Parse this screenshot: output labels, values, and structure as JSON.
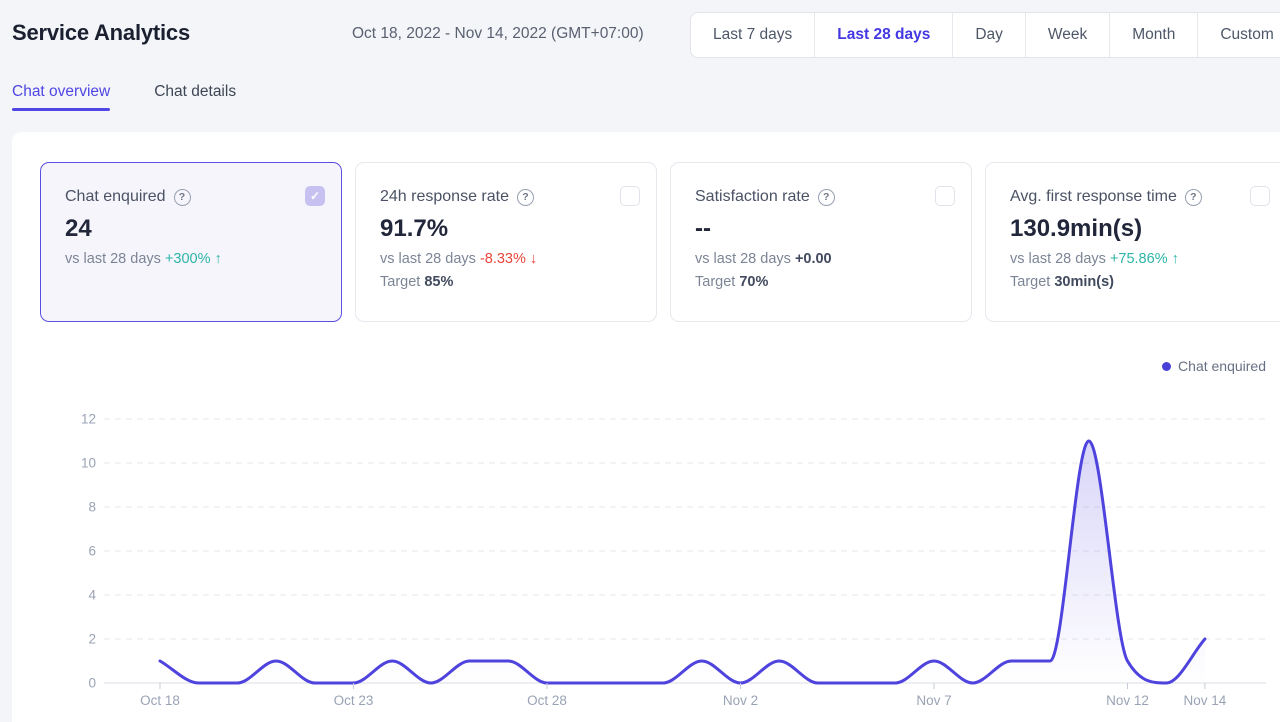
{
  "header": {
    "title": "Service Analytics",
    "date_range": "Oct 18, 2022 - Nov 14, 2022 (GMT+07:00)",
    "range_options": [
      {
        "label": "Last 7 days",
        "active": false
      },
      {
        "label": "Last 28 days",
        "active": true
      },
      {
        "label": "Day",
        "active": false
      },
      {
        "label": "Week",
        "active": false
      },
      {
        "label": "Month",
        "active": false
      },
      {
        "label": "Custom",
        "active": false
      }
    ]
  },
  "tabs": [
    {
      "label": "Chat overview",
      "active": true
    },
    {
      "label": "Chat details",
      "active": false
    }
  ],
  "cards": [
    {
      "title": "Chat enquired",
      "help_icon": "question-circle",
      "checked": true,
      "value": "24",
      "compare_label": "vs last 28 days",
      "delta": "+300%",
      "delta_direction": "up",
      "arrow": "↑",
      "target_label": null,
      "target_value": null
    },
    {
      "title": "24h response rate",
      "help_icon": "question-circle",
      "checked": false,
      "value": "91.7%",
      "compare_label": "vs last 28 days",
      "delta": "-8.33%",
      "delta_direction": "down",
      "arrow": "↓",
      "target_label": "Target",
      "target_value": "85%"
    },
    {
      "title": "Satisfaction rate",
      "help_icon": "question-circle",
      "checked": false,
      "value": "--",
      "compare_label": "vs last 28 days",
      "delta": "+0.00",
      "delta_direction": "none",
      "arrow": null,
      "target_label": "Target",
      "target_value": "70%"
    },
    {
      "title": "Avg. first response time",
      "help_icon": "question-circle",
      "checked": false,
      "value": "130.9min(s)",
      "compare_label": "vs last 28 days",
      "delta": "+75.86%",
      "delta_direction": "up",
      "arrow": "↑",
      "target_label": "Target",
      "target_value": "30min(s)"
    }
  ],
  "legend": {
    "label": "Chat enquired",
    "color": "#4a40d8"
  },
  "colors": {
    "accent": "#4f43de",
    "positive": "#2cb5a8",
    "negative": "#e8463a",
    "line": "#4f43de",
    "grid": "#e3e7ef",
    "axis": "#d8dce5",
    "axis_text": "#9aa3b5"
  },
  "chart_data": {
    "type": "area",
    "title": "",
    "xlabel": "",
    "ylabel": "",
    "x_labels": [
      "Oct 18",
      "Oct 19",
      "Oct 20",
      "Oct 21",
      "Oct 22",
      "Oct 23",
      "Oct 24",
      "Oct 25",
      "Oct 26",
      "Oct 27",
      "Oct 28",
      "Oct 29",
      "Oct 30",
      "Oct 31",
      "Nov 1",
      "Nov 2",
      "Nov 3",
      "Nov 4",
      "Nov 5",
      "Nov 6",
      "Nov 7",
      "Nov 8",
      "Nov 9",
      "Nov 10",
      "Nov 11",
      "Nov 12",
      "Nov 13",
      "Nov 14"
    ],
    "series": [
      {
        "name": "Chat enquired",
        "values": [
          1,
          0,
          0,
          1,
          0,
          0,
          1,
          0,
          1,
          1,
          0,
          0,
          0,
          0,
          1,
          0,
          1,
          0,
          0,
          0,
          1,
          0,
          1,
          1,
          11,
          1,
          0,
          2
        ]
      }
    ],
    "x_tick_labels": [
      "Oct 18",
      "Oct 23",
      "Oct 28",
      "Nov 2",
      "Nov 7",
      "Nov 12",
      "Nov 14"
    ],
    "x_tick_indices": [
      0,
      5,
      10,
      15,
      20,
      25,
      27
    ],
    "y_ticks": [
      0,
      2,
      4,
      6,
      8,
      10,
      12
    ],
    "ylim": [
      0,
      12
    ],
    "grid": "horizontal-dashed",
    "legend_position": "top-right",
    "smooth": true
  }
}
